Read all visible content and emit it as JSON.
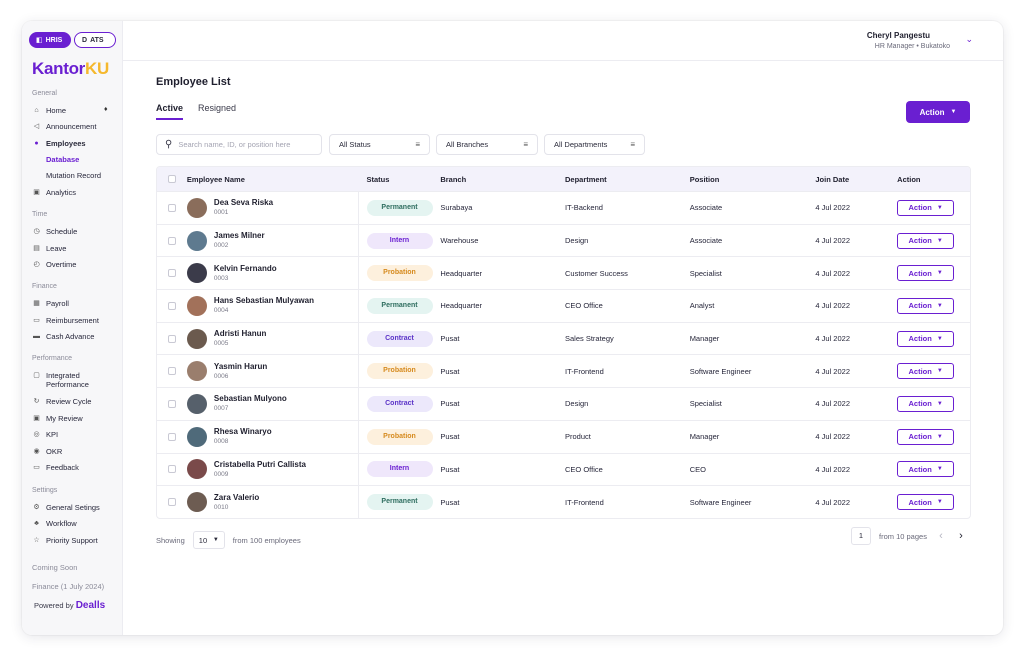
{
  "app_switch": {
    "hris": "HRIS",
    "ats": "ATS"
  },
  "logo": {
    "part1": "Kantor",
    "part2": "KU"
  },
  "sidebar": {
    "general_label": "General",
    "home": "Home",
    "announcement": "Announcement",
    "employees": "Employees",
    "database": "Database",
    "mutation_record": "Mutation Record",
    "analytics": "Analytics",
    "time_label": "Time",
    "schedule": "Schedule",
    "leave": "Leave",
    "overtime": "Overtime",
    "finance_label": "Finance",
    "payroll": "Payroll",
    "reimbursement": "Reimbursement",
    "cash_advance": "Cash Advance",
    "performance_label": "Performance",
    "integrated_performance": "Integrated Performance",
    "review_cycle": "Review Cycle",
    "my_review": "My Review",
    "kpi": "KPI",
    "okr": "OKR",
    "feedback": "Feedback",
    "settings_label": "Settings",
    "general_settings": "General Setings",
    "workflow": "Workflow",
    "priority_support": "Priority Support",
    "coming_soon": "Coming Soon",
    "finance_soon": "Finance (1 July 2024)",
    "powered_by": "Powered by",
    "powered_brand": "Dealls"
  },
  "header": {
    "user_name": "Cheryl Pangestu",
    "user_role": "HR Manager • Bukatoko"
  },
  "main": {
    "title": "Employee List",
    "tab_active": "Active",
    "tab_resigned": "Resigned",
    "action_label": "Action",
    "search_placeholder": "Search name, ID, or position here",
    "filter_status": "All Status",
    "filter_branches": "All Branches",
    "filter_departments": "All Departments"
  },
  "table": {
    "headers": {
      "name": "Employee Name",
      "status": "Status",
      "branch": "Branch",
      "department": "Department",
      "position": "Position",
      "join_date": "Join Date",
      "action": "Action"
    },
    "row_action_label": "Action",
    "rows": [
      {
        "name": "Dea Seva Riska",
        "id": "0001",
        "status": "Permanent",
        "branch": "Surabaya",
        "department": "IT-Backend",
        "position": "Associate",
        "join_date": "4 Jul 2022"
      },
      {
        "name": "James Milner",
        "id": "0002",
        "status": "Intern",
        "branch": "Warehouse",
        "department": "Design",
        "position": "Associate",
        "join_date": "4 Jul 2022"
      },
      {
        "name": "Kelvin Fernando",
        "id": "0003",
        "status": "Probation",
        "branch": "Headquarter",
        "department": "Customer Success",
        "position": "Specialist",
        "join_date": "4 Jul 2022"
      },
      {
        "name": "Hans Sebastian Mulyawan",
        "id": "0004",
        "status": "Permanent",
        "branch": "Headquarter",
        "department": "CEO Office",
        "position": "Analyst",
        "join_date": "4 Jul 2022"
      },
      {
        "name": "Adristi Hanun",
        "id": "0005",
        "status": "Contract",
        "branch": "Pusat",
        "department": "Sales Strategy",
        "position": "Manager",
        "join_date": "4 Jul 2022"
      },
      {
        "name": "Yasmin Harun",
        "id": "0006",
        "status": "Probation",
        "branch": "Pusat",
        "department": "IT-Frontend",
        "position": "Software Engineer",
        "join_date": "4 Jul 2022"
      },
      {
        "name": "Sebastian Mulyono",
        "id": "0007",
        "status": "Contract",
        "branch": "Pusat",
        "department": "Design",
        "position": "Specialist",
        "join_date": "4 Jul 2022"
      },
      {
        "name": "Rhesa Winaryo",
        "id": "0008",
        "status": "Probation",
        "branch": "Pusat",
        "department": "Product",
        "position": "Manager",
        "join_date": "4 Jul 2022"
      },
      {
        "name": "Cristabella Putri Callista",
        "id": "0009",
        "status": "Intern",
        "branch": "Pusat",
        "department": "CEO Office",
        "position": "CEO",
        "join_date": "4 Jul 2022"
      },
      {
        "name": "Zara Valerio",
        "id": "0010",
        "status": "Permanent",
        "branch": "Pusat",
        "department": "IT-Frontend",
        "position": "Software Engineer",
        "join_date": "4 Jul 2022"
      }
    ]
  },
  "footer": {
    "showing": "Showing",
    "per_page": "10",
    "from_total": "from 100 employees",
    "page": "1",
    "from_pages": "from 10 pages"
  },
  "colors": {
    "accent": "#6a1fd1",
    "logo_ku": "#f5b82e"
  }
}
